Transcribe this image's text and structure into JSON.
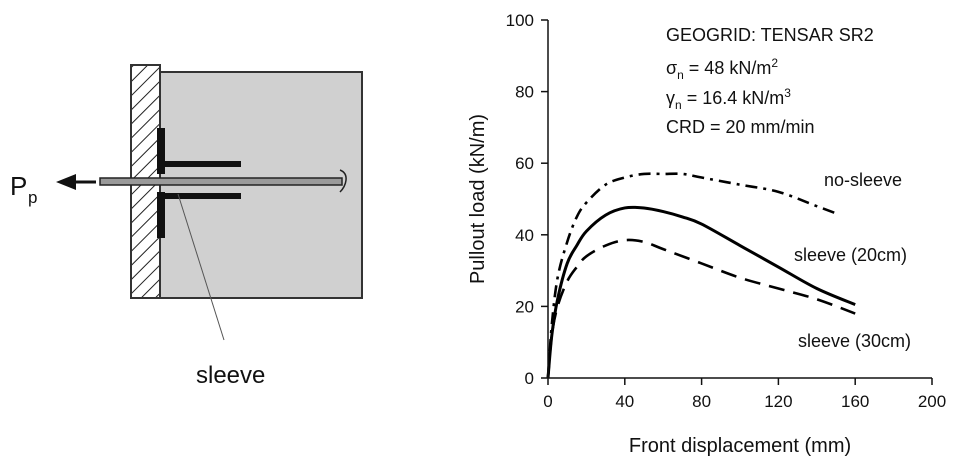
{
  "schematic": {
    "force_label": "P",
    "force_subscript": "p",
    "sleeve_label": "sleeve"
  },
  "chart_data": {
    "type": "line",
    "xlabel": "Front displacement (mm)",
    "ylabel": "Pullout load (kN/m)",
    "xlim": [
      0,
      200
    ],
    "ylim": [
      0,
      100
    ],
    "x_ticks": [
      0,
      40,
      80,
      120,
      160,
      200
    ],
    "y_ticks": [
      0,
      20,
      40,
      60,
      80,
      100
    ],
    "grid": false,
    "annotation": {
      "line1": "GEOGRID: TENSAR SR2",
      "line2_symbol": "σ",
      "line2_sub": "n",
      "line2_rest": " = 48 kN/m",
      "line2_sup": "2",
      "line3_symbol": "γ",
      "line3_sub": "n",
      "line3_rest": " = 16.4 kN/m",
      "line3_sup": "3",
      "line4": "CRD = 20 mm/min"
    },
    "series": [
      {
        "name": "no-sleeve",
        "style": "dashdot",
        "x": [
          0,
          2,
          5,
          10,
          15,
          20,
          30,
          40,
          50,
          60,
          70,
          80,
          100,
          120,
          140,
          150
        ],
        "y": [
          0,
          15,
          28,
          38,
          45,
          49,
          54,
          56,
          57,
          57,
          57,
          56,
          54,
          52,
          48,
          46
        ]
      },
      {
        "name": "sleeve (20cm)",
        "style": "solid",
        "x": [
          0,
          2,
          5,
          10,
          15,
          20,
          30,
          40,
          50,
          60,
          70,
          80,
          100,
          120,
          140,
          160
        ],
        "y": [
          0,
          12,
          22,
          32,
          37,
          41,
          45.5,
          47.5,
          47.5,
          46.5,
          45,
          43,
          37,
          31,
          25,
          20.5
        ]
      },
      {
        "name": "sleeve (30cm)",
        "style": "dashed",
        "x": [
          0,
          2,
          5,
          10,
          15,
          20,
          30,
          40,
          50,
          60,
          80,
          100,
          120,
          140,
          160
        ],
        "y": [
          0,
          12,
          20,
          27,
          31,
          34,
          37,
          38.5,
          38,
          36,
          32,
          28,
          25,
          22,
          18
        ]
      }
    ],
    "series_colors": [
      "#000000",
      "#000000",
      "#000000"
    ]
  }
}
